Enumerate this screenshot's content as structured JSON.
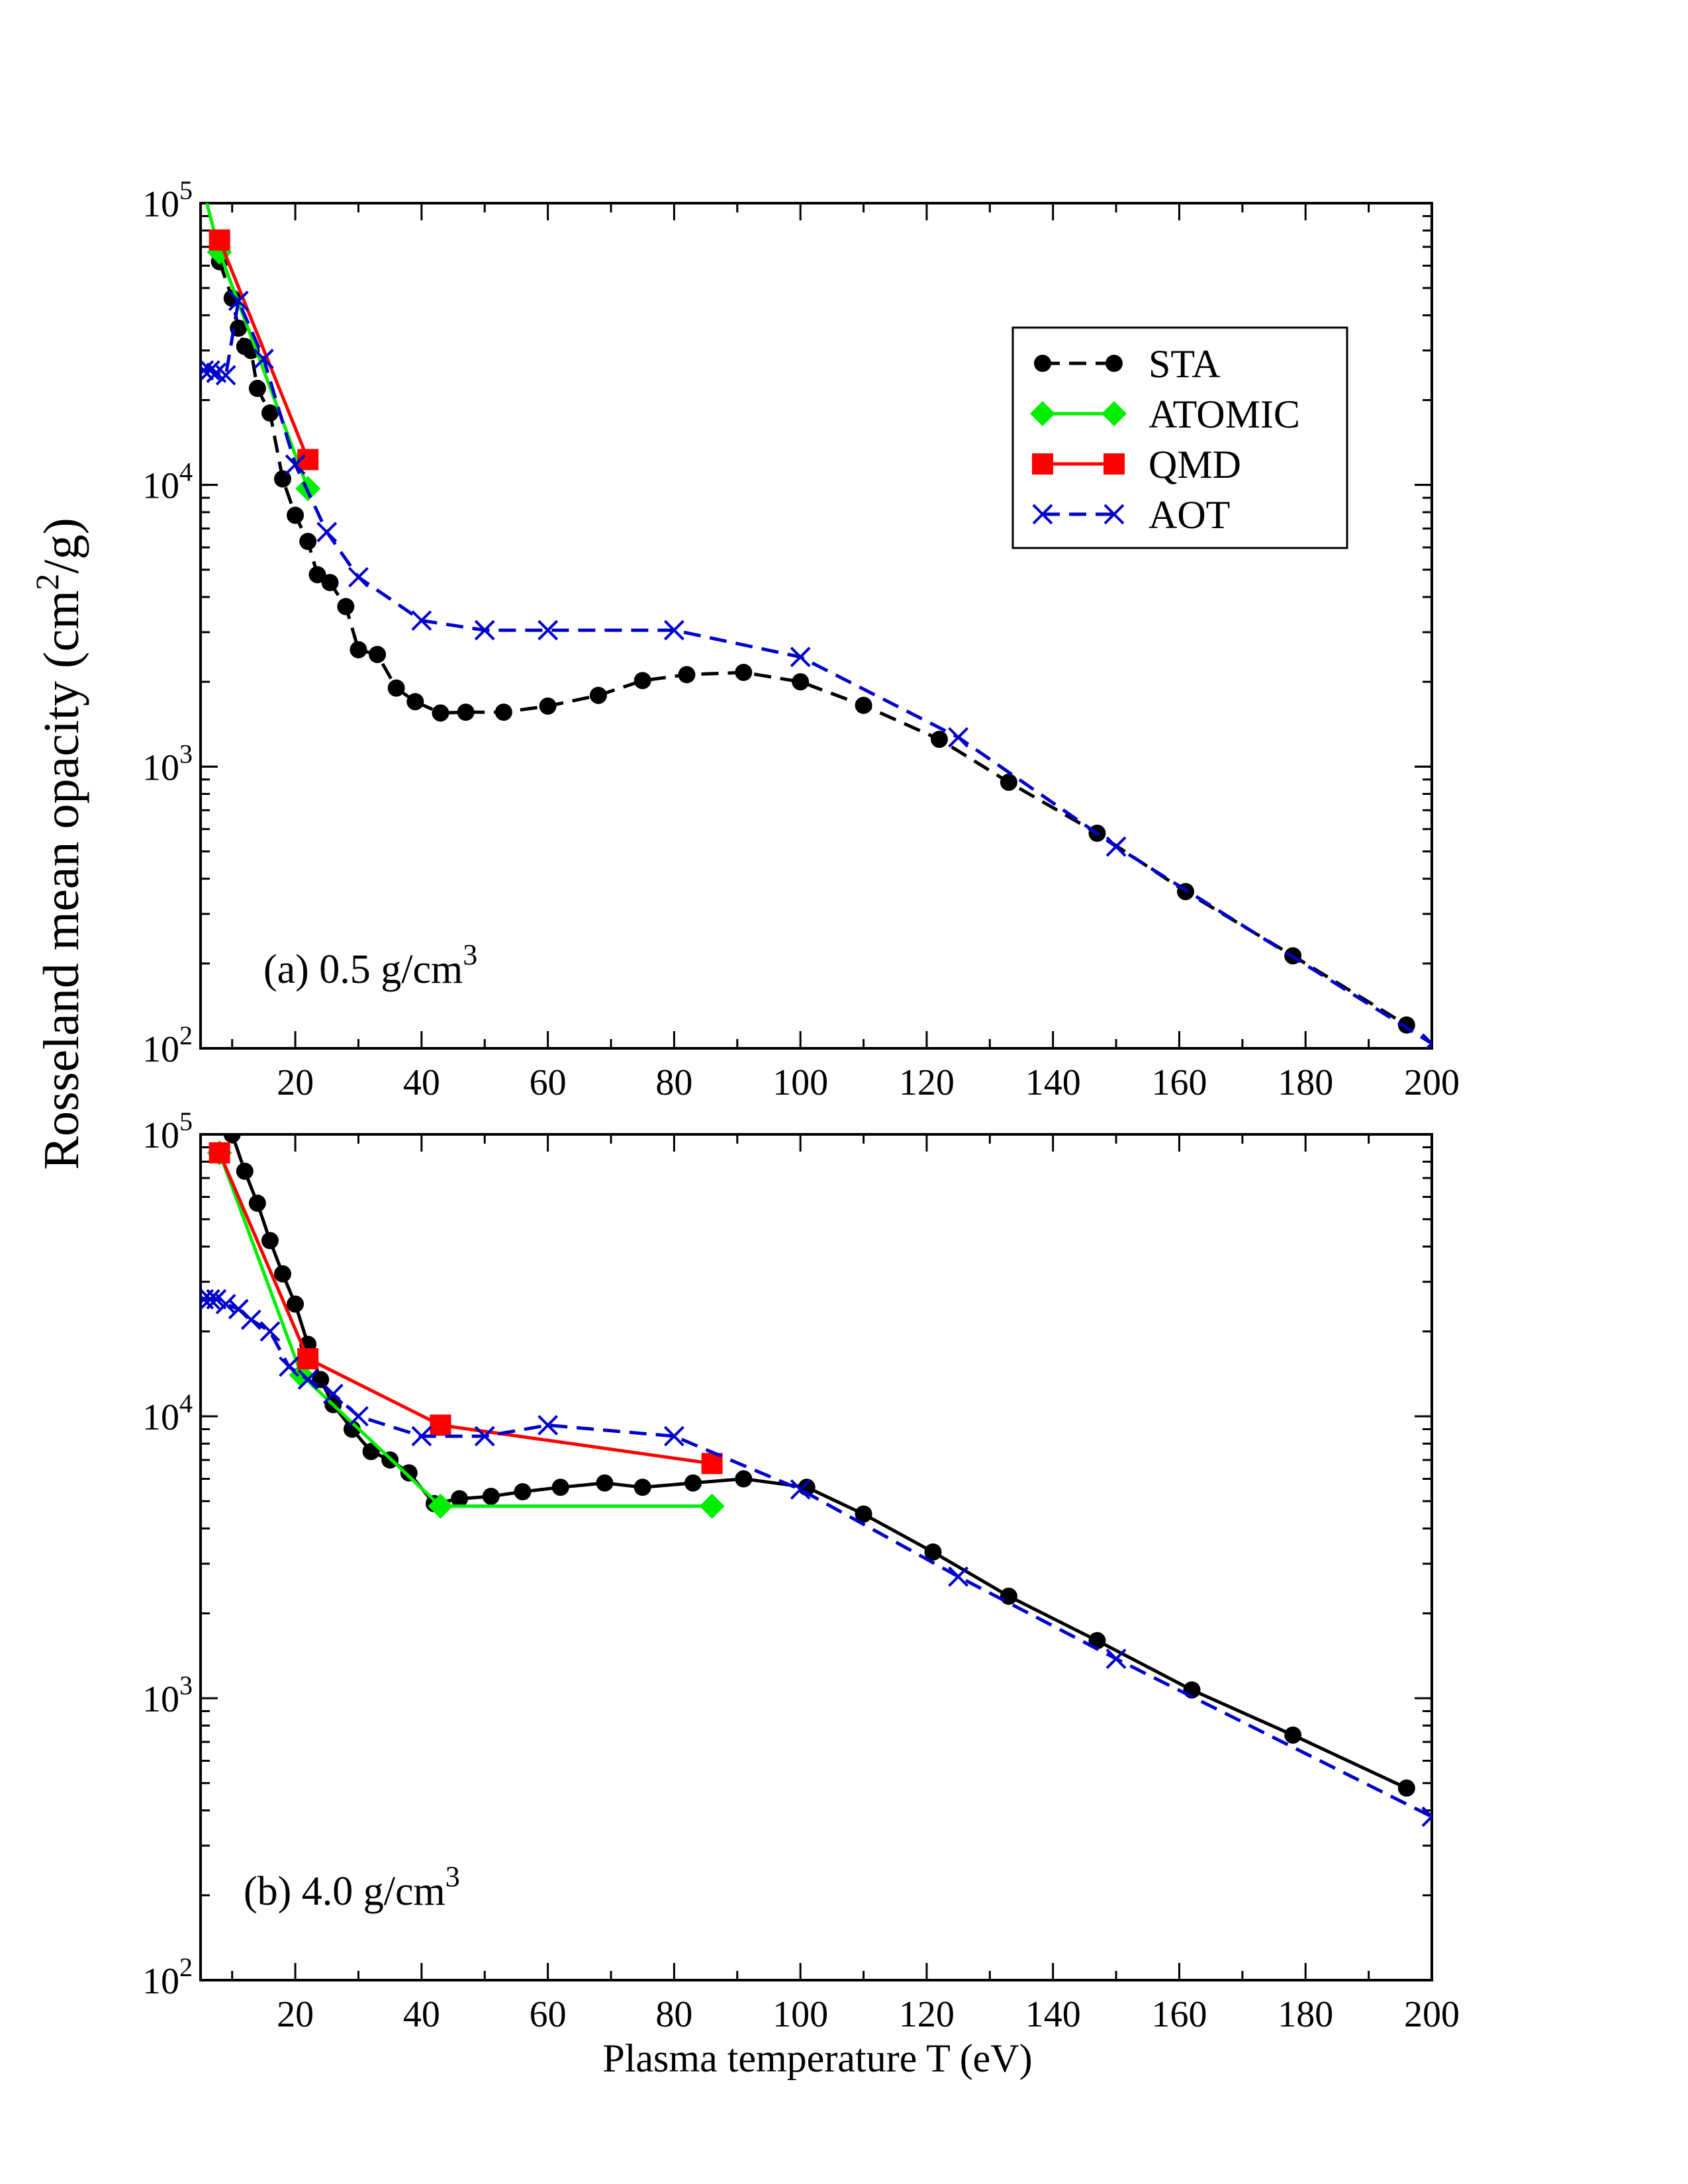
{
  "chart_data": [
    {
      "type": "line",
      "panel": "a",
      "annotation": {
        "main": "(a) 0.5 g/cm",
        "sup": "3"
      },
      "xlim": [
        5,
        200
      ],
      "ylim": [
        100,
        100000
      ],
      "yscale": "log",
      "x_ticks": [
        20,
        40,
        60,
        80,
        100,
        120,
        140,
        160,
        180,
        200
      ],
      "x_tick_labels": [
        "20",
        "40",
        "60",
        "80",
        "100",
        "120",
        "140",
        "160",
        "180",
        "200"
      ],
      "y_ticks": [
        {
          "value": 100000,
          "base": "10",
          "exp": "5"
        },
        {
          "value": 10000,
          "base": "10",
          "exp": "4"
        },
        {
          "value": 1000,
          "base": "10",
          "exp": "3"
        },
        {
          "value": 100,
          "base": "10",
          "exp": "2"
        }
      ],
      "legend_position": "top-right",
      "legend": [
        {
          "name": "STA",
          "color": "#000000",
          "marker": "circle",
          "dash": true
        },
        {
          "name": "ATOMIC",
          "color": "#00ee00",
          "marker": "diamond",
          "dash": false
        },
        {
          "name": "QMD",
          "color": "#ff0000",
          "marker": "square",
          "dash": false
        },
        {
          "name": "AOT",
          "color": "#0000cc",
          "marker": "x",
          "dash": true
        }
      ],
      "series": [
        {
          "name": "STA",
          "color": "#000000",
          "marker": "circle",
          "dash": true,
          "x": [
            8,
            10,
            11,
            12,
            13,
            14,
            16,
            18,
            20,
            22,
            23.5,
            25.5,
            28,
            30,
            33,
            36,
            39,
            43,
            47,
            53,
            60,
            68,
            75,
            82,
            91,
            100,
            110,
            122,
            133,
            147,
            161,
            178,
            196
          ],
          "y": [
            62000,
            46000,
            36000,
            31000,
            30000,
            22000,
            18000,
            10500,
            7800,
            6300,
            4800,
            4500,
            3700,
            2600,
            2500,
            1900,
            1700,
            1550,
            1560,
            1560,
            1640,
            1790,
            2020,
            2120,
            2160,
            2000,
            1650,
            1250,
            880,
            580,
            360,
            213,
            121
          ]
        },
        {
          "name": "ATOMIC",
          "color": "#00ee00",
          "marker": "diamond",
          "dash": false,
          "x": [
            6,
            8,
            22
          ],
          "y": [
            100000,
            67000,
            9700
          ],
          "markers": [
            false,
            true,
            true
          ]
        },
        {
          "name": "QMD",
          "color": "#ff0000",
          "marker": "square",
          "dash": false,
          "x": [
            8,
            22
          ],
          "y": [
            74000,
            12300
          ]
        },
        {
          "name": "AOT",
          "color": "#0000cc",
          "marker": "x",
          "dash": true,
          "x": [
            5.5,
            6.5,
            7.5,
            9,
            11,
            15,
            20,
            25,
            30,
            40,
            50,
            60,
            80,
            100,
            125,
            150,
            200
          ],
          "y": [
            25500,
            25500,
            25000,
            24500,
            45000,
            28000,
            11800,
            6800,
            4700,
            3300,
            3050,
            3050,
            3050,
            2450,
            1270,
            520,
            104
          ]
        }
      ]
    },
    {
      "type": "line",
      "panel": "b",
      "annotation": {
        "main": "(b) 4.0 g/cm",
        "sup": "3"
      },
      "xlim": [
        5,
        200
      ],
      "ylim": [
        100,
        100000
      ],
      "yscale": "log",
      "xlabel": "Plasma temperature T (eV)",
      "x_ticks": [
        20,
        40,
        60,
        80,
        100,
        120,
        140,
        160,
        180,
        200
      ],
      "x_tick_labels": [
        "20",
        "40",
        "60",
        "80",
        "100",
        "120",
        "140",
        "160",
        "180",
        "200"
      ],
      "y_ticks": [
        {
          "value": 100000,
          "base": "10",
          "exp": "5"
        },
        {
          "value": 10000,
          "base": "10",
          "exp": "4"
        },
        {
          "value": 1000,
          "base": "10",
          "exp": "3"
        },
        {
          "value": 100,
          "base": "10",
          "exp": "2"
        }
      ],
      "series": [
        {
          "name": "STA",
          "color": "#000000",
          "marker": "circle",
          "dash": false,
          "x": [
            10,
            12,
            14,
            16,
            18,
            20,
            22,
            24,
            26,
            29,
            32,
            35,
            38,
            42,
            46,
            51,
            56,
            62,
            69,
            75,
            83,
            91,
            101,
            110,
            121,
            133,
            147,
            162,
            178,
            196
          ],
          "y": [
            100000,
            74000,
            57000,
            42000,
            32000,
            25000,
            18000,
            13500,
            11000,
            9000,
            7500,
            7000,
            6300,
            4900,
            5100,
            5200,
            5400,
            5600,
            5800,
            5600,
            5800,
            6000,
            5600,
            4500,
            3300,
            2300,
            1600,
            1070,
            740,
            480
          ]
        },
        {
          "name": "ATOMIC",
          "color": "#00ee00",
          "marker": "diamond",
          "dash": false,
          "x": [
            8,
            21,
            43,
            86
          ],
          "y": [
            86000,
            14000,
            4800,
            4800
          ]
        },
        {
          "name": "QMD",
          "color": "#ff0000",
          "marker": "square",
          "dash": false,
          "x": [
            8,
            22,
            43,
            86
          ],
          "y": [
            86000,
            16000,
            9300,
            6800
          ]
        },
        {
          "name": "AOT",
          "color": "#0000cc",
          "marker": "x",
          "dash": true,
          "x": [
            5.5,
            6.5,
            7.5,
            9,
            11,
            13,
            16,
            19,
            22,
            26,
            30,
            40,
            50,
            60,
            80,
            100,
            125,
            150,
            200
          ],
          "y": [
            26000,
            26000,
            26000,
            25000,
            24000,
            22000,
            20000,
            15000,
            13500,
            12000,
            10000,
            8500,
            8500,
            9300,
            8500,
            5500,
            2700,
            1380,
            380
          ]
        }
      ]
    }
  ],
  "ylabel": {
    "main": "Rosseland mean opacity (cm",
    "sup": "2",
    "tail": "/g)"
  }
}
